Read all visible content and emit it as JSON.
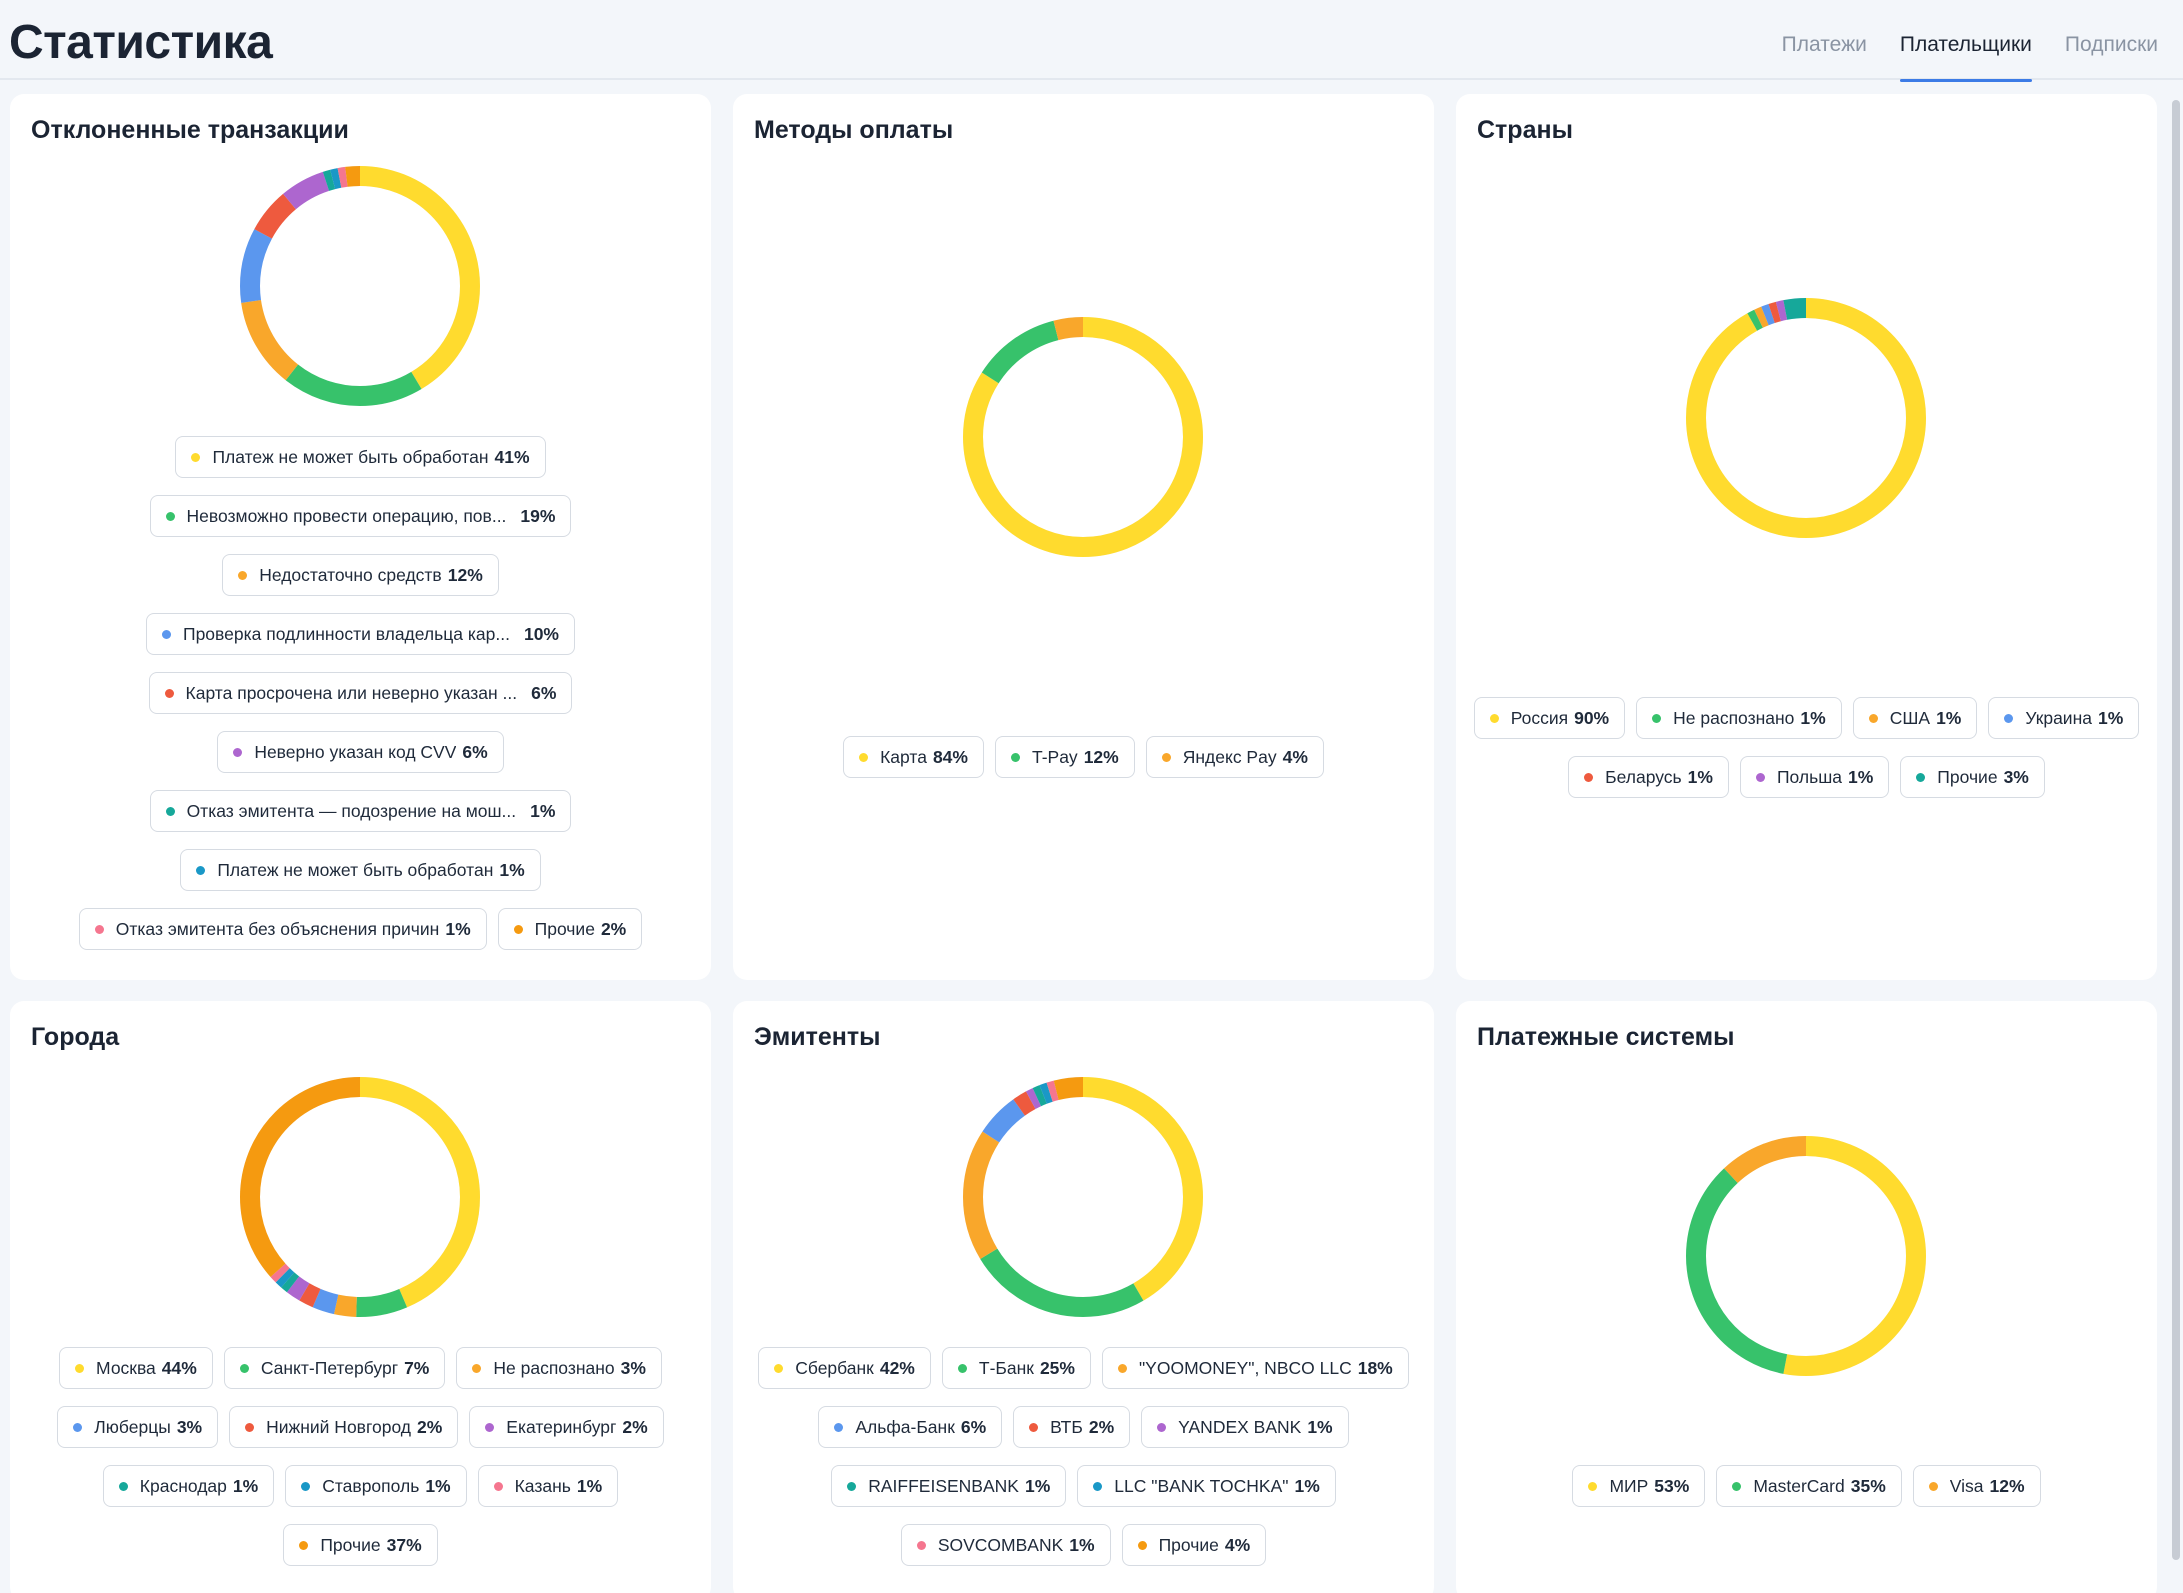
{
  "page": {
    "title": "Статистика"
  },
  "tabs": [
    {
      "label": "Платежи",
      "active": false
    },
    {
      "label": "Плательщики",
      "active": true
    },
    {
      "label": "Подписки",
      "active": false
    }
  ],
  "colors": {
    "yellow": "#ffdb2e",
    "green": "#37c26b",
    "orange": "#f9a72b",
    "blue": "#5b97ee",
    "red": "#ee5a3e",
    "purple": "#ad66cf",
    "teal": "#16a89a",
    "cyan": "#1a98c7",
    "pink": "#f5768f",
    "dark_orange": "#f59a10"
  },
  "cards": [
    {
      "id": "declined",
      "title": "Отклоненные транзакции",
      "chart_data": {
        "type": "pie",
        "donut": true,
        "series": [
          {
            "name": "Платеж не может быть обработан",
            "value": 41,
            "label": "41%",
            "color": "yellow",
            "truncated": false
          },
          {
            "name": "Невозможно провести операцию, пов...",
            "value": 19,
            "label": "19%",
            "color": "green",
            "truncated": true
          },
          {
            "name": "Недостаточно средств",
            "value": 12,
            "label": "12%",
            "color": "orange",
            "truncated": false
          },
          {
            "name": "Проверка подлинности владельца кар...",
            "value": 10,
            "label": "10%",
            "color": "blue",
            "truncated": true
          },
          {
            "name": "Карта просрочена или неверно указан ...",
            "value": 6,
            "label": "6%",
            "color": "red",
            "truncated": true
          },
          {
            "name": "Неверно указан код CVV",
            "value": 6,
            "label": "6%",
            "color": "purple",
            "truncated": false
          },
          {
            "name": "Отказ эмитента — подозрение на мош...",
            "value": 1,
            "label": "1%",
            "color": "teal",
            "truncated": true
          },
          {
            "name": "Платеж не может быть обработан",
            "value": 1,
            "label": "1%",
            "color": "cyan",
            "truncated": false
          },
          {
            "name": "Отказ эмитента без объяснения причин",
            "value": 1,
            "label": "1%",
            "color": "pink",
            "truncated": false
          },
          {
            "name": "Прочие",
            "value": 2,
            "label": "2%",
            "color": "dark_orange",
            "truncated": false
          }
        ]
      },
      "legend_rows": [
        [
          0
        ],
        [
          1
        ],
        [
          2
        ],
        [
          3
        ],
        [
          4
        ],
        [
          5
        ],
        [
          6
        ],
        [
          7
        ],
        [
          8,
          9
        ]
      ]
    },
    {
      "id": "payment-methods",
      "title": "Методы оплаты",
      "chart_data": {
        "type": "pie",
        "donut": true,
        "series": [
          {
            "name": "Карта",
            "value": 84,
            "label": "84%",
            "color": "yellow"
          },
          {
            "name": "T-Pay",
            "value": 12,
            "label": "12%",
            "color": "green"
          },
          {
            "name": "Яндекс Pay",
            "value": 4,
            "label": "4%",
            "color": "orange"
          }
        ]
      },
      "legend_rows": [
        [
          0,
          1,
          2
        ]
      ]
    },
    {
      "id": "countries",
      "title": "Страны",
      "chart_data": {
        "type": "pie",
        "donut": true,
        "series": [
          {
            "name": "Россия",
            "value": 90,
            "label": "90%",
            "color": "yellow"
          },
          {
            "name": "Не распознано",
            "value": 1,
            "label": "1%",
            "color": "green"
          },
          {
            "name": "США",
            "value": 1,
            "label": "1%",
            "color": "orange"
          },
          {
            "name": "Украина",
            "value": 1,
            "label": "1%",
            "color": "blue"
          },
          {
            "name": "Беларусь",
            "value": 1,
            "label": "1%",
            "color": "red"
          },
          {
            "name": "Польша",
            "value": 1,
            "label": "1%",
            "color": "purple"
          },
          {
            "name": "Прочие",
            "value": 3,
            "label": "3%",
            "color": "teal"
          }
        ]
      },
      "legend_rows": [
        [
          0,
          1,
          2,
          3
        ],
        [
          4,
          5,
          6
        ]
      ]
    },
    {
      "id": "cities",
      "title": "Города",
      "chart_data": {
        "type": "pie",
        "donut": true,
        "series": [
          {
            "name": "Москва",
            "value": 44,
            "label": "44%",
            "color": "yellow"
          },
          {
            "name": "Санкт-Петербург",
            "value": 7,
            "label": "7%",
            "color": "green"
          },
          {
            "name": "Не распознано",
            "value": 3,
            "label": "3%",
            "color": "orange"
          },
          {
            "name": "Люберцы",
            "value": 3,
            "label": "3%",
            "color": "blue"
          },
          {
            "name": "Нижний Новгород",
            "value": 2,
            "label": "2%",
            "color": "red"
          },
          {
            "name": "Екатеринбург",
            "value": 2,
            "label": "2%",
            "color": "purple"
          },
          {
            "name": "Краснодар",
            "value": 1,
            "label": "1%",
            "color": "teal"
          },
          {
            "name": "Ставрополь",
            "value": 1,
            "label": "1%",
            "color": "cyan"
          },
          {
            "name": "Казань",
            "value": 1,
            "label": "1%",
            "color": "pink"
          },
          {
            "name": "Прочие",
            "value": 37,
            "label": "37%",
            "color": "dark_orange"
          }
        ]
      },
      "legend_rows": [
        [
          0,
          1,
          2
        ],
        [
          3,
          4,
          5
        ],
        [
          6,
          7,
          8
        ],
        [
          9
        ]
      ]
    },
    {
      "id": "issuers",
      "title": "Эмитенты",
      "chart_data": {
        "type": "pie",
        "donut": true,
        "series": [
          {
            "name": "Сбербанк",
            "value": 42,
            "label": "42%",
            "color": "yellow"
          },
          {
            "name": "Т-Банк",
            "value": 25,
            "label": "25%",
            "color": "green"
          },
          {
            "name": "\"YOOMONEY\", NBCO LLC",
            "value": 18,
            "label": "18%",
            "color": "orange"
          },
          {
            "name": "Альфа-Банк",
            "value": 6,
            "label": "6%",
            "color": "blue"
          },
          {
            "name": "ВТБ",
            "value": 2,
            "label": "2%",
            "color": "red"
          },
          {
            "name": "YANDEX BANK",
            "value": 1,
            "label": "1%",
            "color": "purple"
          },
          {
            "name": "RAIFFEISENBANK",
            "value": 1,
            "label": "1%",
            "color": "teal"
          },
          {
            "name": "LLC \"BANK TOCHKA\"",
            "value": 1,
            "label": "1%",
            "color": "cyan"
          },
          {
            "name": "SOVCOMBANK",
            "value": 1,
            "label": "1%",
            "color": "pink"
          },
          {
            "name": "Прочие",
            "value": 4,
            "label": "4%",
            "color": "dark_orange"
          }
        ]
      },
      "legend_rows": [
        [
          0,
          1,
          2
        ],
        [
          3,
          4,
          5
        ],
        [
          6,
          7
        ],
        [
          8,
          9
        ]
      ]
    },
    {
      "id": "payment-systems",
      "title": "Платежные системы",
      "chart_data": {
        "type": "pie",
        "donut": true,
        "series": [
          {
            "name": "МИР",
            "value": 53,
            "label": "53%",
            "color": "yellow"
          },
          {
            "name": "MasterCard",
            "value": 35,
            "label": "35%",
            "color": "green"
          },
          {
            "name": "Visa",
            "value": 12,
            "label": "12%",
            "color": "orange"
          }
        ]
      },
      "legend_rows": [
        [
          0,
          1,
          2
        ]
      ]
    }
  ]
}
